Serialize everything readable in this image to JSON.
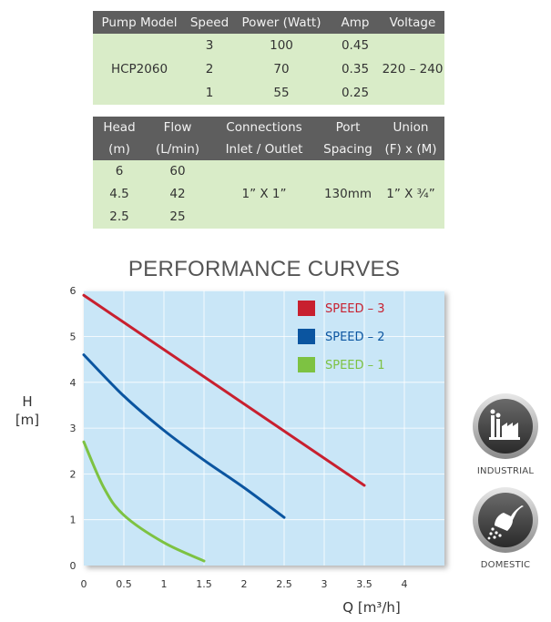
{
  "specs": {
    "headers": [
      "Pump Model",
      "Speed",
      "Power (Watt)",
      "Amp",
      "Voltage"
    ],
    "model": "HCP2060",
    "voltage": "220 – 240",
    "rows": [
      {
        "speed": "3",
        "power": "100",
        "amp": "0.45"
      },
      {
        "speed": "2",
        "power": "70",
        "amp": "0.35"
      },
      {
        "speed": "1",
        "power": "55",
        "amp": "0.25"
      }
    ]
  },
  "performance": {
    "headers": {
      "head": [
        "Head",
        "(m)"
      ],
      "flow": [
        "Flow",
        "(L/min)"
      ],
      "connections": [
        "Connections",
        "Inlet / Outlet"
      ],
      "port": [
        "Port",
        "Spacing"
      ],
      "union": [
        "Union",
        "(F) x (M)"
      ]
    },
    "rows": [
      {
        "head": "6",
        "flow": "60"
      },
      {
        "head": "4.5",
        "flow": "42"
      },
      {
        "head": "2.5",
        "flow": "25"
      }
    ],
    "connections": "1” X 1”",
    "port_spacing": "130mm",
    "union": "1” X ¾”"
  },
  "badges": [
    {
      "label": "INDUSTRIAL",
      "icon": "factory-icon"
    },
    {
      "label": "DOMESTIC",
      "icon": "shower-head-icon"
    }
  ],
  "chart_data": {
    "type": "line",
    "title": "PERFORMANCE CURVES",
    "ylabel": "H [m]",
    "xlabel": "Q [m³/h]",
    "xlim": [
      0,
      4.5
    ],
    "ylim": [
      0,
      6
    ],
    "x_ticks": [
      0,
      0.5,
      1,
      1.5,
      2,
      2.5,
      3,
      3.5,
      4
    ],
    "y_ticks": [
      0,
      1,
      2,
      3,
      4,
      5,
      6
    ],
    "grid": true,
    "legend_position": "top-right",
    "series": [
      {
        "name": "SPEED – 3",
        "color": "#c8202f",
        "points": [
          [
            0,
            5.9
          ],
          [
            3.5,
            1.75
          ]
        ]
      },
      {
        "name": "SPEED – 2",
        "color": "#0b55a0",
        "points": [
          [
            0,
            4.6
          ],
          [
            0.5,
            3.7
          ],
          [
            1,
            2.95
          ],
          [
            1.5,
            2.3
          ],
          [
            2,
            1.7
          ],
          [
            2.5,
            1.05
          ]
        ]
      },
      {
        "name": "SPEED – 1",
        "color": "#7dc242",
        "points": [
          [
            0,
            2.7
          ],
          [
            0.25,
            1.7
          ],
          [
            0.5,
            1.1
          ],
          [
            1,
            0.5
          ],
          [
            1.5,
            0.1
          ]
        ]
      }
    ]
  },
  "colors": {
    "plot_bg": "#c9e6f7",
    "grid": "#ffffff",
    "header_bg": "#5e5e5e",
    "cell_bg": "#d9ecc8"
  }
}
